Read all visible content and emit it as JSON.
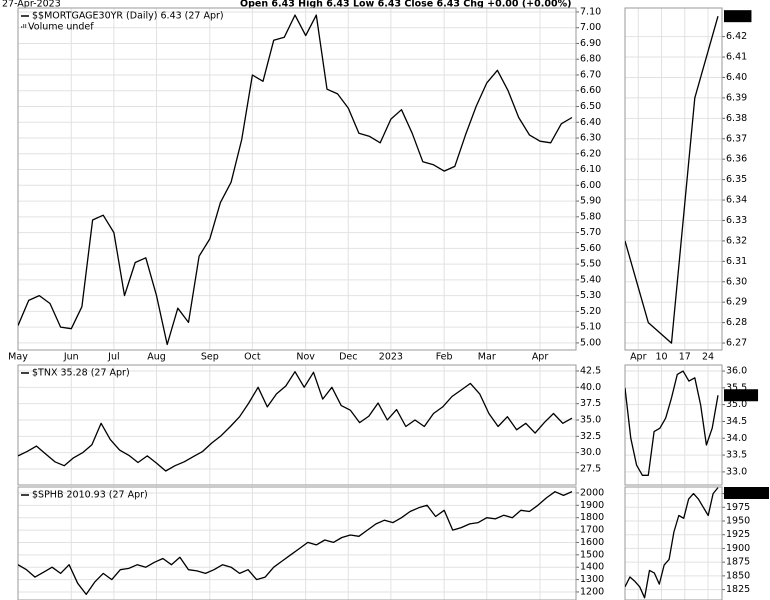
{
  "header": {
    "date": "27-Apr-2023",
    "quote": "Open 6.43  High 6.43  Low 6.43  Close 6.43  Chg +0.00 (+0.00%)"
  },
  "chart_data": [
    {
      "type": "line",
      "legend": "$$MORTGAGE30YR (Daily) 6.43 (27 Apr)",
      "note": "Volume undef",
      "categories": [
        "May",
        null,
        null,
        null,
        null,
        "Jun",
        null,
        null,
        null,
        "Jul",
        null,
        null,
        null,
        "Aug",
        null,
        null,
        null,
        null,
        "Sep",
        null,
        null,
        null,
        "Oct",
        null,
        null,
        null,
        null,
        "Nov",
        null,
        null,
        null,
        "Dec",
        null,
        null,
        null,
        "2023",
        null,
        null,
        null,
        null,
        "Feb",
        null,
        null,
        null,
        "Mar",
        null,
        null,
        null,
        null,
        "Apr",
        null,
        null,
        null
      ],
      "values": [
        5.11,
        5.27,
        5.3,
        5.25,
        5.1,
        5.09,
        5.23,
        5.78,
        5.81,
        5.7,
        5.3,
        5.51,
        5.54,
        5.3,
        4.99,
        5.22,
        5.13,
        5.55,
        5.66,
        5.89,
        6.02,
        6.29,
        6.7,
        6.66,
        6.92,
        6.94,
        7.08,
        6.95,
        7.08,
        6.61,
        6.58,
        6.49,
        6.33,
        6.31,
        6.27,
        6.42,
        6.48,
        6.33,
        6.15,
        6.13,
        6.09,
        6.12,
        6.32,
        6.5,
        6.65,
        6.73,
        6.6,
        6.43,
        6.32,
        6.28,
        6.27,
        6.39,
        6.43
      ],
      "color": "#000000",
      "ylim": [
        4.955,
        7.125
      ],
      "yticks": [
        {
          "value": 5,
          "label": "5.00"
        },
        {
          "value": 5.1,
          "label": "5.10"
        },
        {
          "value": 5.2,
          "label": "5.20"
        },
        {
          "value": 5.3,
          "label": "5.30"
        },
        {
          "value": 5.4,
          "label": "5.40"
        },
        {
          "value": 5.5,
          "label": "5.50"
        },
        {
          "value": 5.6,
          "label": "5.60"
        },
        {
          "value": 5.7,
          "label": "5.70"
        },
        {
          "value": 5.8,
          "label": "5.80"
        },
        {
          "value": 5.9,
          "label": "5.90"
        },
        {
          "value": 6,
          "label": "6.00"
        },
        {
          "value": 6.1,
          "label": "6.10"
        },
        {
          "value": 6.2,
          "label": "6.20"
        },
        {
          "value": 6.3,
          "label": "6.30"
        },
        {
          "value": 6.4,
          "label": "6.40"
        },
        {
          "value": 6.5,
          "label": "6.50"
        },
        {
          "value": 6.6,
          "label": "6.60"
        },
        {
          "value": 6.7,
          "label": "6.70"
        },
        {
          "value": 6.8,
          "label": "6.80"
        },
        {
          "value": 6.9,
          "label": "6.90"
        },
        {
          "value": 7,
          "label": "7.00"
        },
        {
          "value": 7.1,
          "label": "7.10"
        }
      ],
      "grid": true
    },
    {
      "type": "line",
      "x": [
        -1,
        6,
        13,
        20,
        27
      ],
      "values": [
        6.32,
        6.28,
        6.27,
        6.39,
        6.43
      ],
      "color": "#000000",
      "xlim": [
        -1,
        27
      ],
      "xticks": [
        {
          "value": 3,
          "label": "Apr"
        },
        10,
        17,
        24
      ],
      "ylim": [
        6.2666,
        6.434
      ],
      "yticks": [
        6.27,
        6.28,
        6.29,
        {
          "value": 6.3,
          "label": "6.30"
        },
        6.31,
        6.32,
        6.33,
        6.34,
        6.35,
        6.36,
        6.37,
        6.38,
        6.39,
        {
          "value": 6.4,
          "label": "6.40"
        },
        6.41,
        6.42
      ],
      "grid": true
    },
    {
      "type": "line",
      "legend": "$TNX 35.28 (27 Apr)",
      "values": [
        29.5,
        30.2,
        31.0,
        29.8,
        28.6,
        28.0,
        29.2,
        30.0,
        31.2,
        34.5,
        32.0,
        30.4,
        29.6,
        28.5,
        29.5,
        28.4,
        27.2,
        28.0,
        28.6,
        29.4,
        30.2,
        31.5,
        32.6,
        34.0,
        35.5,
        37.6,
        40.0,
        37.0,
        39.0,
        40.2,
        42.4,
        40.0,
        42.3,
        38.2,
        40.0,
        37.2,
        36.5,
        34.6,
        35.6,
        37.6,
        35.0,
        36.6,
        34.0,
        35.0,
        34.0,
        36.0,
        37.0,
        38.6,
        39.6,
        40.6,
        39.0,
        36.0,
        34.0,
        35.5,
        33.5,
        34.5,
        33.0,
        34.6,
        36.0,
        34.5,
        35.28
      ],
      "color": "#000000",
      "ylim": [
        25.05,
        43.42
      ],
      "yticks": [
        27.5,
        {
          "value": 30,
          "label": "30.0"
        },
        32.5,
        {
          "value": 35,
          "label": "35.0"
        },
        37.5,
        {
          "value": 40,
          "label": "40.0"
        },
        42.5
      ],
      "grid": true
    },
    {
      "type": "line",
      "values": [
        35.5,
        34.0,
        33.2,
        32.9,
        32.9,
        34.2,
        34.3,
        34.6,
        35.2,
        35.9,
        36.0,
        35.7,
        35.8,
        35.0,
        33.8,
        34.3,
        35.28
      ],
      "color": "#000000",
      "ylim": [
        32.61,
        36.18
      ],
      "yticks": [
        {
          "value": 33,
          "label": "33.0"
        },
        33.5,
        {
          "value": 34,
          "label": "34.0"
        },
        34.5,
        {
          "value": 35,
          "label": "35.0"
        },
        35.5,
        {
          "value": 36,
          "label": "36.0"
        }
      ],
      "grid": true
    },
    {
      "type": "line",
      "legend": "$SPHB 2010.93 (27 Apr)",
      "values": [
        1420,
        1380,
        1320,
        1360,
        1400,
        1350,
        1420,
        1270,
        1180,
        1280,
        1350,
        1300,
        1380,
        1390,
        1420,
        1400,
        1440,
        1470,
        1420,
        1480,
        1380,
        1370,
        1350,
        1380,
        1420,
        1400,
        1350,
        1380,
        1300,
        1320,
        1400,
        1450,
        1500,
        1550,
        1600,
        1580,
        1620,
        1600,
        1640,
        1660,
        1650,
        1700,
        1750,
        1780,
        1760,
        1800,
        1850,
        1880,
        1900,
        1810,
        1860,
        1700,
        1720,
        1750,
        1760,
        1800,
        1790,
        1820,
        1800,
        1860,
        1850,
        1900,
        1960,
        2010,
        1980,
        2010.93
      ],
      "color": "#000000",
      "ylim": [
        1135,
        2048
      ],
      "yticks": [
        1200,
        1300,
        1400,
        1500,
        1600,
        1700,
        1800,
        1900,
        2000
      ],
      "grid": true
    },
    {
      "type": "line",
      "values": [
        1830,
        1848,
        1840,
        1830,
        1810,
        1860,
        1855,
        1835,
        1870,
        1880,
        1930,
        1960,
        1955,
        1990,
        2000,
        1990,
        1975,
        1960,
        2000,
        2010.93
      ],
      "color": "#000000",
      "ylim": [
        1806,
        2012
      ],
      "yticks": [
        1825,
        1850,
        1875,
        1900,
        1925,
        1950,
        1975,
        2000
      ],
      "grid": true
    }
  ]
}
